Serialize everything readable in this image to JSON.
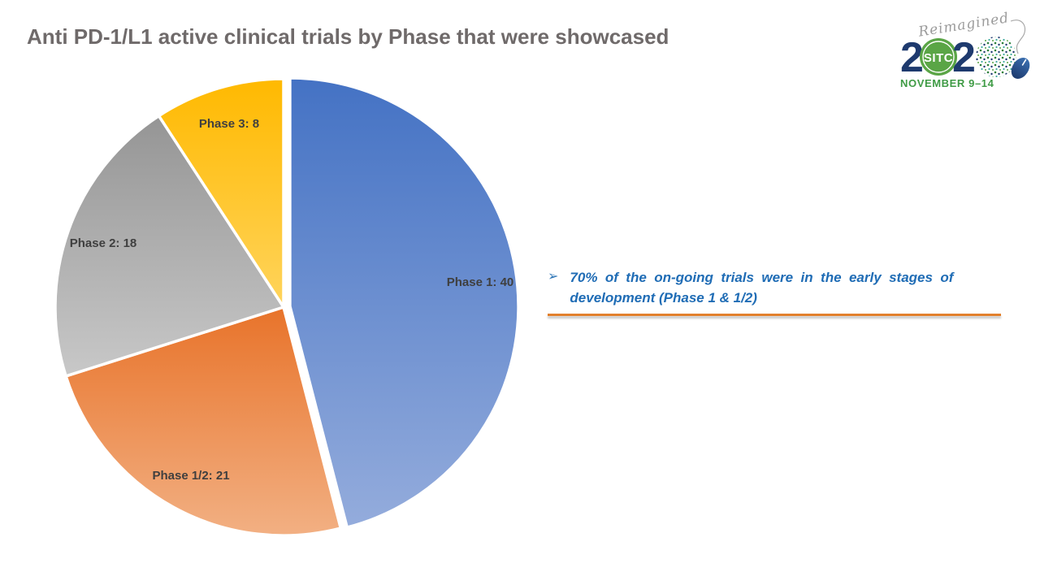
{
  "slide": {
    "title": "Anti PD-1/L1 active clinical trials by Phase that were showcased"
  },
  "chart_data": {
    "type": "pie",
    "title": "Anti PD-1/L1 active clinical trials by Phase that were showcased",
    "categories": [
      "Phase 1",
      "Phase 1/2",
      "Phase 2",
      "Phase 3"
    ],
    "values": [
      40,
      21,
      18,
      8
    ],
    "labels": [
      "Phase 1: 40",
      "Phase 1/2: 21",
      "Phase 2: 18",
      "Phase 3: 8"
    ],
    "colors_top": [
      "#4472C4",
      "#E8732A",
      "#959595",
      "#FFB900"
    ],
    "colors_bottom": [
      "#94ACDC",
      "#F2B083",
      "#C8C8C8",
      "#FFD45C"
    ],
    "start_angle_deg": 0,
    "clockwise": true,
    "explode_slice_index": 0,
    "label_color": "#3F3F3F",
    "legend_position": "none",
    "grid": false
  },
  "callout": {
    "bullet_glyph": "➢",
    "text": "70% of the on-going trials were in the early stages of development (Phase 1 & 1/2)",
    "text_color": "#1F6CB5",
    "rule_color": "#E2802C"
  },
  "logo": {
    "script_text": "Reimagined",
    "year_left_digits": "2",
    "org": "SITC",
    "year_right_digit": "2",
    "dates": "NOVEMBER 9–14",
    "green": "#5AA546",
    "navy": "#1E3A6E"
  }
}
